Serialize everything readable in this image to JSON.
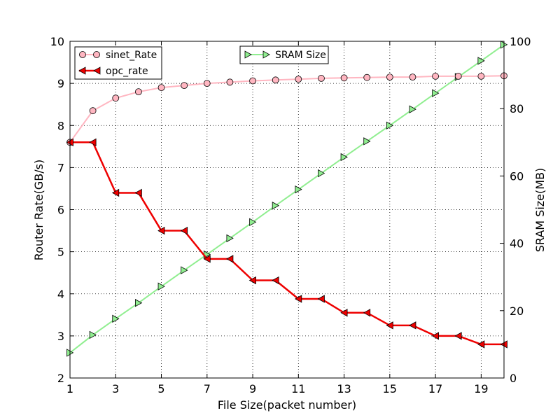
{
  "chart_data": {
    "type": "line",
    "xlabel": "File Size(packet number)",
    "ylabel_left": "Router Rate(GB/s)",
    "ylabel_right": "SRAM Size(MB)",
    "x": [
      1,
      2,
      3,
      4,
      5,
      6,
      7,
      8,
      9,
      10,
      11,
      12,
      13,
      14,
      15,
      16,
      17,
      18,
      19,
      20
    ],
    "xlim": [
      1,
      20
    ],
    "x_ticks": [
      "1",
      "3",
      "5",
      "7",
      "9",
      "11",
      "13",
      "15",
      "17",
      "19"
    ],
    "ylim_left": [
      2,
      10
    ],
    "y_ticks_left": [
      "2",
      "3",
      "4",
      "5",
      "6",
      "7",
      "8",
      "9",
      "10"
    ],
    "ylim_right": [
      0,
      100
    ],
    "y_ticks_right": [
      "0",
      "20",
      "40",
      "60",
      "80",
      "100"
    ],
    "grid": true,
    "legend_left": "top-left",
    "legend_right": "top-center",
    "series": [
      {
        "name": "sinet_Rate",
        "axis": "left",
        "color": "#ffb6c1",
        "marker": "circle",
        "values": [
          7.6,
          8.35,
          8.65,
          8.8,
          8.9,
          8.95,
          9.0,
          9.03,
          9.06,
          9.08,
          9.1,
          9.12,
          9.13,
          9.14,
          9.15,
          9.15,
          9.17,
          9.17,
          9.17,
          9.18
        ]
      },
      {
        "name": "opc_rate",
        "axis": "left",
        "color": "#ee0000",
        "marker": "triangle-left",
        "step": true,
        "values": [
          7.6,
          7.6,
          6.4,
          6.4,
          5.5,
          5.5,
          4.83,
          4.83,
          4.32,
          4.32,
          3.88,
          3.88,
          3.55,
          3.55,
          3.25,
          3.25,
          3.0,
          3.0,
          2.8,
          2.8
        ]
      },
      {
        "name": "SRAM Size",
        "axis": "right",
        "color": "#90ee90",
        "marker": "triangle-right",
        "values": [
          7.5,
          12.8,
          17.6,
          22.3,
          27.2,
          32.0,
          36.7,
          41.5,
          46.3,
          51.2,
          56.0,
          60.8,
          65.6,
          70.3,
          75.0,
          79.8,
          84.6,
          89.4,
          94.2,
          99.0
        ]
      }
    ]
  }
}
